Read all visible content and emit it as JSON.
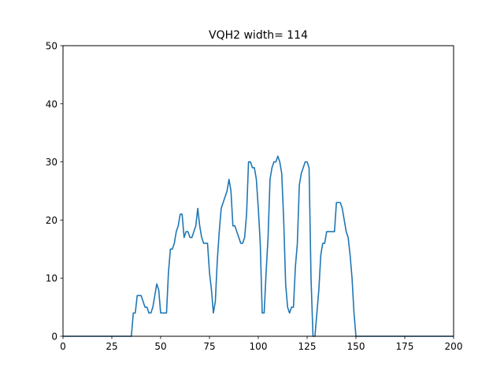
{
  "chart_data": {
    "type": "line",
    "title": "VQH2 width= 114",
    "xlabel": "",
    "ylabel": "",
    "xlim": [
      0,
      200
    ],
    "ylim": [
      0,
      50
    ],
    "xticks": [
      0,
      25,
      50,
      75,
      100,
      125,
      150,
      175,
      200
    ],
    "yticks": [
      0,
      10,
      20,
      30,
      40,
      50
    ],
    "grid": false,
    "legend": "none",
    "series": [
      {
        "color": "#1f77b4",
        "points": [
          [
            0,
            0
          ],
          [
            35,
            0
          ],
          [
            36,
            4
          ],
          [
            37,
            4
          ],
          [
            38,
            7
          ],
          [
            39,
            7
          ],
          [
            40,
            7
          ],
          [
            41,
            6
          ],
          [
            42,
            5
          ],
          [
            43,
            5
          ],
          [
            44,
            4
          ],
          [
            45,
            4
          ],
          [
            46,
            5
          ],
          [
            47,
            7
          ],
          [
            48,
            9
          ],
          [
            49,
            8
          ],
          [
            50,
            4
          ],
          [
            51,
            4
          ],
          [
            52,
            4
          ],
          [
            53,
            4
          ],
          [
            54,
            11
          ],
          [
            55,
            15
          ],
          [
            56,
            15
          ],
          [
            57,
            16
          ],
          [
            58,
            18
          ],
          [
            59,
            19
          ],
          [
            60,
            21
          ],
          [
            61,
            21
          ],
          [
            62,
            17
          ],
          [
            63,
            18
          ],
          [
            64,
            18
          ],
          [
            65,
            17
          ],
          [
            66,
            17
          ],
          [
            67,
            18
          ],
          [
            68,
            19
          ],
          [
            69,
            22
          ],
          [
            70,
            19
          ],
          [
            71,
            17
          ],
          [
            72,
            16
          ],
          [
            73,
            16
          ],
          [
            74,
            16
          ],
          [
            75,
            11
          ],
          [
            76,
            8
          ],
          [
            77,
            4
          ],
          [
            78,
            6
          ],
          [
            79,
            13
          ],
          [
            80,
            18
          ],
          [
            81,
            22
          ],
          [
            82,
            23
          ],
          [
            83,
            24
          ],
          [
            84,
            25
          ],
          [
            85,
            27
          ],
          [
            86,
            25
          ],
          [
            87,
            19
          ],
          [
            88,
            19
          ],
          [
            89,
            18
          ],
          [
            90,
            17
          ],
          [
            91,
            16
          ],
          [
            92,
            16
          ],
          [
            93,
            17
          ],
          [
            94,
            21
          ],
          [
            95,
            30
          ],
          [
            96,
            30
          ],
          [
            97,
            29
          ],
          [
            98,
            29
          ],
          [
            99,
            27
          ],
          [
            100,
            22
          ],
          [
            101,
            16
          ],
          [
            102,
            4
          ],
          [
            103,
            4
          ],
          [
            104,
            11
          ],
          [
            105,
            17
          ],
          [
            106,
            27
          ],
          [
            107,
            29
          ],
          [
            108,
            30
          ],
          [
            109,
            30
          ],
          [
            110,
            31
          ],
          [
            111,
            30
          ],
          [
            112,
            28
          ],
          [
            113,
            20
          ],
          [
            114,
            9
          ],
          [
            115,
            5
          ],
          [
            116,
            4
          ],
          [
            117,
            5
          ],
          [
            118,
            5
          ],
          [
            119,
            12
          ],
          [
            120,
            16
          ],
          [
            121,
            26
          ],
          [
            122,
            28
          ],
          [
            123,
            29
          ],
          [
            124,
            30
          ],
          [
            125,
            30
          ],
          [
            126,
            29
          ],
          [
            127,
            10
          ],
          [
            128,
            0
          ],
          [
            129,
            0
          ],
          [
            130,
            4
          ],
          [
            131,
            8
          ],
          [
            132,
            14
          ],
          [
            133,
            16
          ],
          [
            134,
            16
          ],
          [
            135,
            18
          ],
          [
            136,
            18
          ],
          [
            137,
            18
          ],
          [
            138,
            18
          ],
          [
            139,
            18
          ],
          [
            140,
            23
          ],
          [
            141,
            23
          ],
          [
            142,
            23
          ],
          [
            143,
            22
          ],
          [
            144,
            20
          ],
          [
            145,
            18
          ],
          [
            146,
            17
          ],
          [
            147,
            14
          ],
          [
            148,
            10
          ],
          [
            149,
            4
          ],
          [
            150,
            0
          ],
          [
            200,
            0
          ]
        ]
      }
    ]
  }
}
